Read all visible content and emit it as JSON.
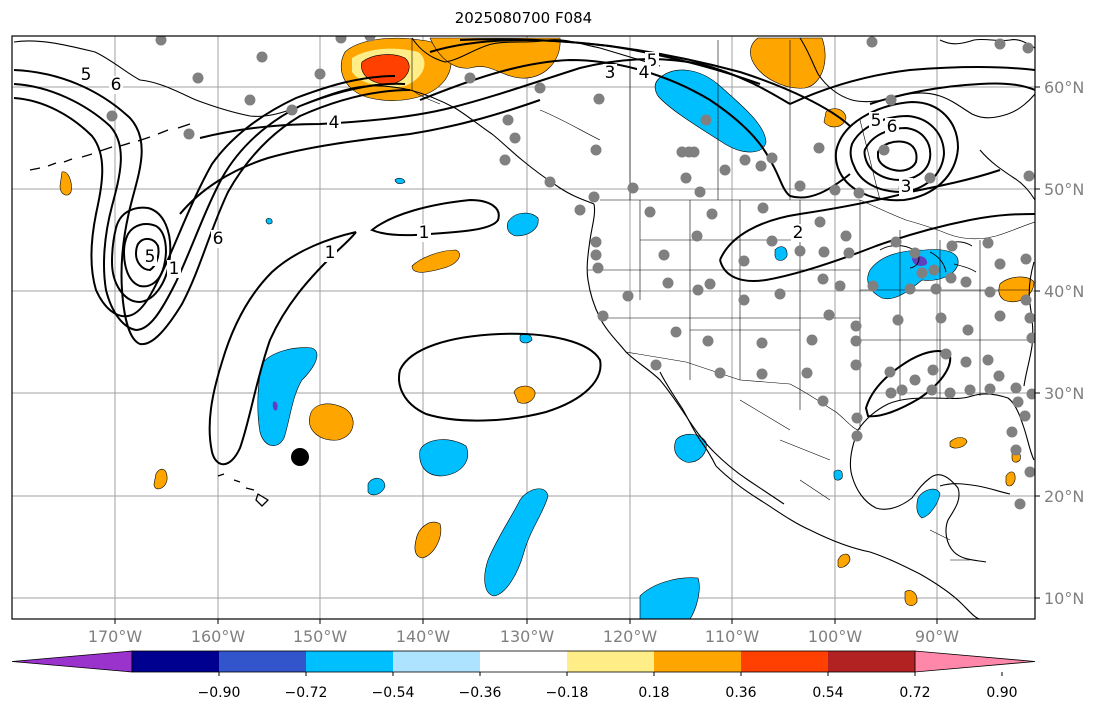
{
  "title": "2025080700 F084",
  "map": {
    "lon_ticks": [
      "170°W",
      "160°W",
      "150°W",
      "140°W",
      "130°W",
      "120°W",
      "110°W",
      "100°W",
      "90°W"
    ],
    "lat_ticks": [
      "60°N",
      "50°N",
      "40°N",
      "30°N",
      "20°N",
      "10°N"
    ],
    "contour_labels": [
      "5",
      "6",
      "4",
      "3",
      "5",
      "4",
      "5",
      "6",
      "3",
      "2",
      "6",
      "5",
      "1",
      "1",
      "1"
    ],
    "colors": {
      "land_outline": "#000000",
      "grid": "#a0a0a0",
      "station_dot": "#808080",
      "orange": "#ffa500",
      "red": "#ff4000",
      "yellow": "#ffee88",
      "sky_blue": "#00bfff",
      "light_blue": "#ade3ff",
      "purple": "#6040c0"
    }
  },
  "colorbar": {
    "colors": [
      "#9933cc",
      "#000090",
      "#3355cc",
      "#00bfff",
      "#ade3ff",
      "#ffffff",
      "#ffee88",
      "#ffa500",
      "#ff4000",
      "#b22222",
      "#ff88aa"
    ],
    "tick_labels": [
      "−0.90",
      "−0.72",
      "−0.54",
      "−0.36",
      "−0.18",
      "0.18",
      "0.36",
      "0.54",
      "0.72",
      "0.90"
    ]
  }
}
